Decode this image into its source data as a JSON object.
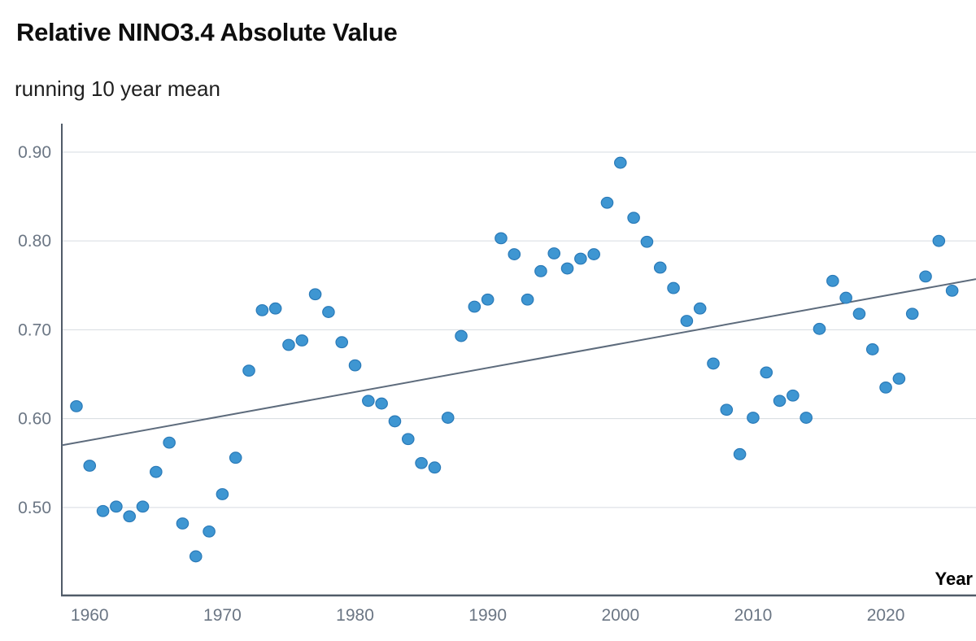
{
  "header": {
    "title": "Relative NINO3.4 Absolute Value",
    "subtitle": "running 10 year mean"
  },
  "chart_data": {
    "type": "scatter",
    "title": "Relative NINO3.4 Absolute Value",
    "subtitle": "running 10 year mean",
    "xlabel": "Year",
    "ylabel": "",
    "x_ticks": [
      1960,
      1970,
      1980,
      1990,
      2000,
      2010,
      2020
    ],
    "y_ticks": [
      0.5,
      0.6,
      0.7,
      0.8,
      0.9
    ],
    "xlim": [
      1957.9,
      2026.8
    ],
    "ylim": [
      0.401,
      0.932
    ],
    "grid": "horizontal-only",
    "legend": "none",
    "series": [
      {
        "name": "running 10 year mean of relative NINO3.4 absolute value",
        "x": [
          1959,
          1960,
          1961,
          1962,
          1963,
          1964,
          1965,
          1966,
          1967,
          1968,
          1969,
          1970,
          1971,
          1972,
          1973,
          1974,
          1975,
          1976,
          1977,
          1978,
          1979,
          1980,
          1981,
          1982,
          1983,
          1984,
          1985,
          1986,
          1987,
          1988,
          1989,
          1990,
          1991,
          1992,
          1993,
          1994,
          1995,
          1996,
          1997,
          1998,
          1999,
          2000,
          2001,
          2002,
          2003,
          2004,
          2005,
          2006,
          2007,
          2008,
          2009,
          2010,
          2011,
          2012,
          2013,
          2014,
          2015,
          2016,
          2017,
          2018,
          2019,
          2020,
          2021,
          2022,
          2023,
          2024,
          2025
        ],
        "y": [
          0.614,
          0.547,
          0.496,
          0.501,
          0.49,
          0.501,
          0.54,
          0.573,
          0.482,
          0.445,
          0.473,
          0.515,
          0.556,
          0.654,
          0.722,
          0.724,
          0.683,
          0.688,
          0.74,
          0.72,
          0.686,
          0.66,
          0.62,
          0.617,
          0.597,
          0.577,
          0.55,
          0.545,
          0.601,
          0.693,
          0.726,
          0.734,
          0.803,
          0.785,
          0.734,
          0.766,
          0.786,
          0.769,
          0.78,
          0.785,
          0.843,
          0.888,
          0.826,
          0.799,
          0.77,
          0.747,
          0.71,
          0.724,
          0.662,
          0.61,
          0.56,
          0.601,
          0.652,
          0.62,
          0.626,
          0.601,
          0.701,
          0.755,
          0.736,
          0.718,
          0.678,
          0.635,
          0.645,
          0.718,
          0.76,
          0.8,
          0.744
        ]
      }
    ],
    "trend_line": {
      "x1": 1957.9,
      "y1": 0.57,
      "x2": 2026.8,
      "y2": 0.757
    },
    "colors": {
      "point_fill": "#3e96d2",
      "point_stroke": "#2a7ab8",
      "trend": "#5d6b7c",
      "axis": "#505b68",
      "grid": "#d6dbe0",
      "tick_text": "#6b7684",
      "axis_label_text": "#000000",
      "title_text": "#0e0e0e",
      "subtitle_text": "#1f1f1f",
      "background": "#ffffff"
    }
  }
}
